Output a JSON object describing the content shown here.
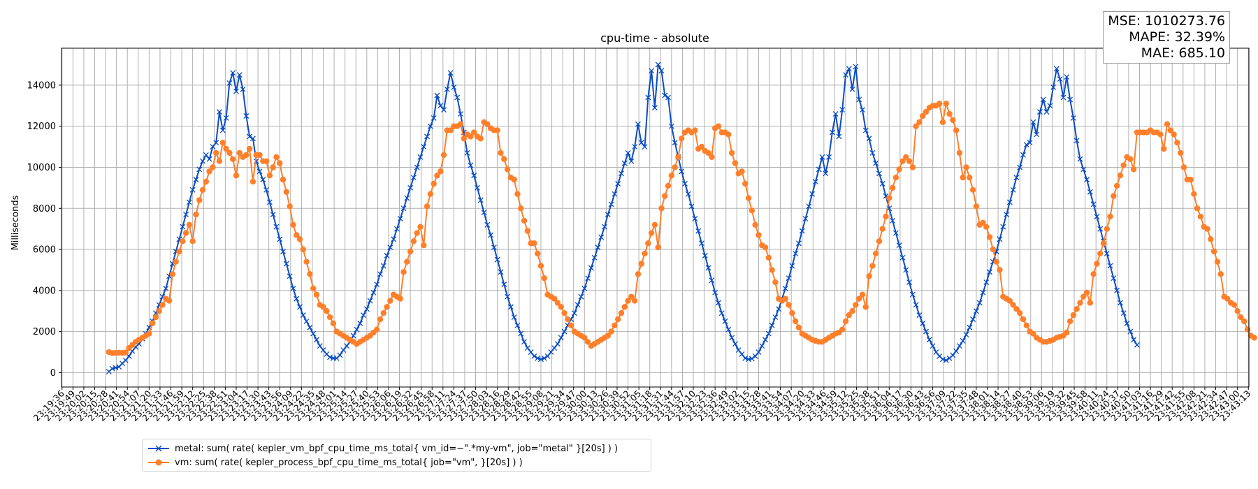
{
  "metrics": {
    "mse": "MSE: 1010273.76",
    "mape": "MAPE: 32.39%",
    "mae": "MAE: 685.10"
  },
  "colors": {
    "metal": "#0a4cc4",
    "vm": "#ff7f2a",
    "grid": "#b0b0b0"
  },
  "chart_data": {
    "type": "line",
    "title": "cpu-time - absolute",
    "xlabel": "",
    "ylabel": "Milliseconds",
    "ylim": [
      -700,
      15800
    ],
    "yticks": [
      0,
      2000,
      4000,
      6000,
      8000,
      10000,
      12000,
      14000
    ],
    "grid": true,
    "legend_position": "below-left",
    "x_start": "23:19:36",
    "x_tick_step_seconds": 13,
    "x_tick_count": 110,
    "sample_period_seconds": 4,
    "series": [
      {
        "name": "metal: sum( rate( kepler_vm_bpf_cpu_time_ms_total{ vm_id=~\".*my-vm\", job=\"metal\" }[20s] ) )",
        "marker": "x",
        "start": "23:20:32",
        "values": [
          50,
          200,
          240,
          280,
          450,
          600,
          800,
          1050,
          1250,
          1400,
          1650,
          1900,
          2200,
          2500,
          2900,
          3300,
          3700,
          4100,
          4700,
          5300,
          5900,
          6500,
          7100,
          7700,
          8300,
          8900,
          9400,
          9900,
          10300,
          10600,
          10400,
          11000,
          11200,
          12700,
          11800,
          12400,
          14100,
          14600,
          13700,
          14500,
          13800,
          12500,
          11500,
          11400,
          10300,
          9800,
          9400,
          8900,
          8300,
          7700,
          7100,
          6500,
          5900,
          5300,
          4700,
          4100,
          3600,
          3200,
          2800,
          2500,
          2200,
          1900,
          1600,
          1300,
          1100,
          900,
          750,
          700,
          700,
          850,
          1100,
          1300,
          1500,
          1800,
          2100,
          2400,
          2800,
          3100,
          3500,
          3900,
          4300,
          4800,
          5200,
          5700,
          6100,
          6500,
          7000,
          7500,
          8000,
          8500,
          9000,
          9500,
          10000,
          10500,
          11000,
          11500,
          12000,
          12400,
          13500,
          13000,
          12800,
          13800,
          14600,
          13900,
          13400,
          12600,
          11700,
          10700,
          10100,
          9600,
          9000,
          8400,
          7800,
          7200,
          6700,
          6100,
          5500,
          4900,
          4300,
          3700,
          3200,
          2700,
          2300,
          1900,
          1500,
          1200,
          1000,
          800,
          700,
          650,
          700,
          800,
          1000,
          1200,
          1400,
          1700,
          2000,
          2300,
          2600,
          2900,
          3300,
          3700,
          4100,
          4600,
          5100,
          5600,
          6100,
          6600,
          7100,
          7700,
          8200,
          8700,
          9200,
          9700,
          10200,
          10700,
          10300,
          11000,
          12100,
          11200,
          11000,
          13400,
          14700,
          12900,
          15000,
          14700,
          13500,
          13400,
          12000,
          11200,
          10500,
          9800,
          9200,
          8700,
          8100,
          7500,
          6900,
          6300,
          5700,
          5100,
          4500,
          3900,
          3400,
          2900,
          2500,
          2100,
          1700,
          1400,
          1100,
          900,
          700,
          650,
          680,
          800,
          1000,
          1300,
          1600,
          1900,
          2300,
          2700,
          3100,
          3600,
          4100,
          4600,
          5200,
          5800,
          6300,
          6900,
          7500,
          8100,
          8700,
          9300,
          9900,
          10500,
          9700,
          10500,
          11700,
          12600,
          11500,
          12800,
          14500,
          14800,
          13800,
          14900,
          13300,
          12800,
          11800,
          11400,
          10700,
          10200,
          9700,
          9200,
          8600,
          8000,
          7400,
          6800,
          6200,
          5600,
          5000,
          4400,
          3800,
          3300,
          2800,
          2400,
          2000,
          1600,
          1300,
          1000,
          800,
          650,
          600,
          700,
          850,
          1050,
          1300,
          1550,
          1850,
          2200,
          2600,
          3000,
          3400,
          3900,
          4400,
          4900,
          5400,
          5900,
          6500,
          7100,
          7700,
          8300,
          8900,
          9500,
          10000,
          10600,
          11100,
          11200,
          12200,
          11600,
          12700,
          13300,
          12700,
          13000,
          13900,
          14800,
          14300,
          13400,
          14400,
          13300,
          12400,
          11300,
          10400,
          9900,
          9400,
          8800,
          8200,
          7600,
          7000,
          6400,
          5800,
          5200,
          4600,
          4000,
          3400,
          2900,
          2400,
          2000,
          1600,
          1350
        ]
      },
      {
        "name": "vm: sum( rate( kepler_process_bpf_cpu_time_ms_total{ job=\"vm\", }[20s] ) )",
        "marker": "o",
        "start": "23:20:32",
        "values": [
          1000,
          950,
          960,
          970,
          960,
          980,
          1200,
          1350,
          1500,
          1600,
          1700,
          1800,
          1900,
          2400,
          2700,
          3000,
          3300,
          3600,
          3500,
          4800,
          5400,
          5900,
          6400,
          6800,
          7200,
          6400,
          7700,
          8400,
          8900,
          9300,
          9800,
          10000,
          10700,
          10300,
          11200,
          10900,
          10700,
          10400,
          9600,
          10700,
          10500,
          10600,
          10900,
          9300,
          10600,
          10600,
          10300,
          10300,
          9600,
          10000,
          10500,
          10200,
          9400,
          8800,
          8100,
          7200,
          6700,
          6500,
          6000,
          5400,
          4800,
          4100,
          3800,
          3300,
          3200,
          3000,
          2700,
          2400,
          2000,
          1900,
          1800,
          1700,
          1600,
          1500,
          1400,
          1500,
          1600,
          1700,
          1800,
          1950,
          2100,
          2600,
          2900,
          3200,
          3500,
          3800,
          3700,
          3600,
          4900,
          5400,
          5900,
          6400,
          6800,
          7100,
          6200,
          8100,
          8700,
          9200,
          9600,
          9800,
          10600,
          11800,
          11800,
          12000,
          12000,
          12100,
          11400,
          11600,
          11500,
          11700,
          11500,
          11400,
          12200,
          12100,
          11900,
          11800,
          11800,
          10700,
          10400,
          9900,
          9500,
          9400,
          8700,
          8000,
          7400,
          6900,
          6300,
          6300,
          5800,
          5200,
          4600,
          3800,
          3700,
          3600,
          3400,
          3200,
          2900,
          2600,
          2300,
          2000,
          1900,
          1800,
          1700,
          1500,
          1300,
          1400,
          1500,
          1600,
          1700,
          1800,
          2000,
          2300,
          2600,
          2900,
          3200,
          3500,
          3700,
          3500,
          4800,
          5300,
          5800,
          6300,
          6800,
          7200,
          6100,
          8000,
          8600,
          9100,
          9600,
          10000,
          10500,
          11400,
          11700,
          11800,
          11700,
          11800,
          10900,
          11000,
          10800,
          10700,
          10500,
          11900,
          12000,
          11700,
          11700,
          11600,
          10700,
          10200,
          9700,
          9800,
          9200,
          8500,
          7900,
          7200,
          6700,
          6200,
          6100,
          5600,
          5000,
          4400,
          3600,
          3500,
          3600,
          3300,
          2900,
          2500,
          2200,
          1900,
          1800,
          1700,
          1600,
          1550,
          1500,
          1500,
          1600,
          1700,
          1800,
          1900,
          1950,
          2100,
          2500,
          2800,
          3000,
          3300,
          3600,
          3800,
          3200,
          4700,
          5200,
          5800,
          6400,
          7000,
          7600,
          8500,
          9000,
          9500,
          9900,
          10300,
          10500,
          10300,
          10000,
          12000,
          12200,
          12500,
          12700,
          12900,
          13000,
          13000,
          13100,
          12200,
          13100,
          12600,
          12300,
          11800,
          10700,
          9500,
          10000,
          9500,
          8900,
          8100,
          7200,
          7300,
          7100,
          6600,
          6000,
          5400,
          5000,
          3700,
          3600,
          3500,
          3300,
          3100,
          2900,
          2600,
          2300,
          2000,
          1900,
          1700,
          1600,
          1500,
          1500,
          1550,
          1600,
          1700,
          1750,
          1800,
          1950,
          2500,
          2800,
          3100,
          3400,
          3700,
          3900,
          3400,
          4800,
          5300,
          5800,
          6300,
          7000,
          7600,
          8600,
          9100,
          9600,
          10100,
          10500,
          10400,
          9900,
          11700,
          11700,
          11700,
          11700,
          11800,
          11700,
          11700,
          11600,
          10900,
          12100,
          11800,
          11600,
          11200,
          10700,
          10000,
          9400,
          9400,
          8700,
          8000,
          7600,
          7100,
          7000,
          6500,
          5900,
          5400,
          4800,
          3700,
          3600,
          3400,
          3300,
          3000,
          2700,
          2500,
          2100,
          1800,
          1700
        ]
      }
    ]
  }
}
